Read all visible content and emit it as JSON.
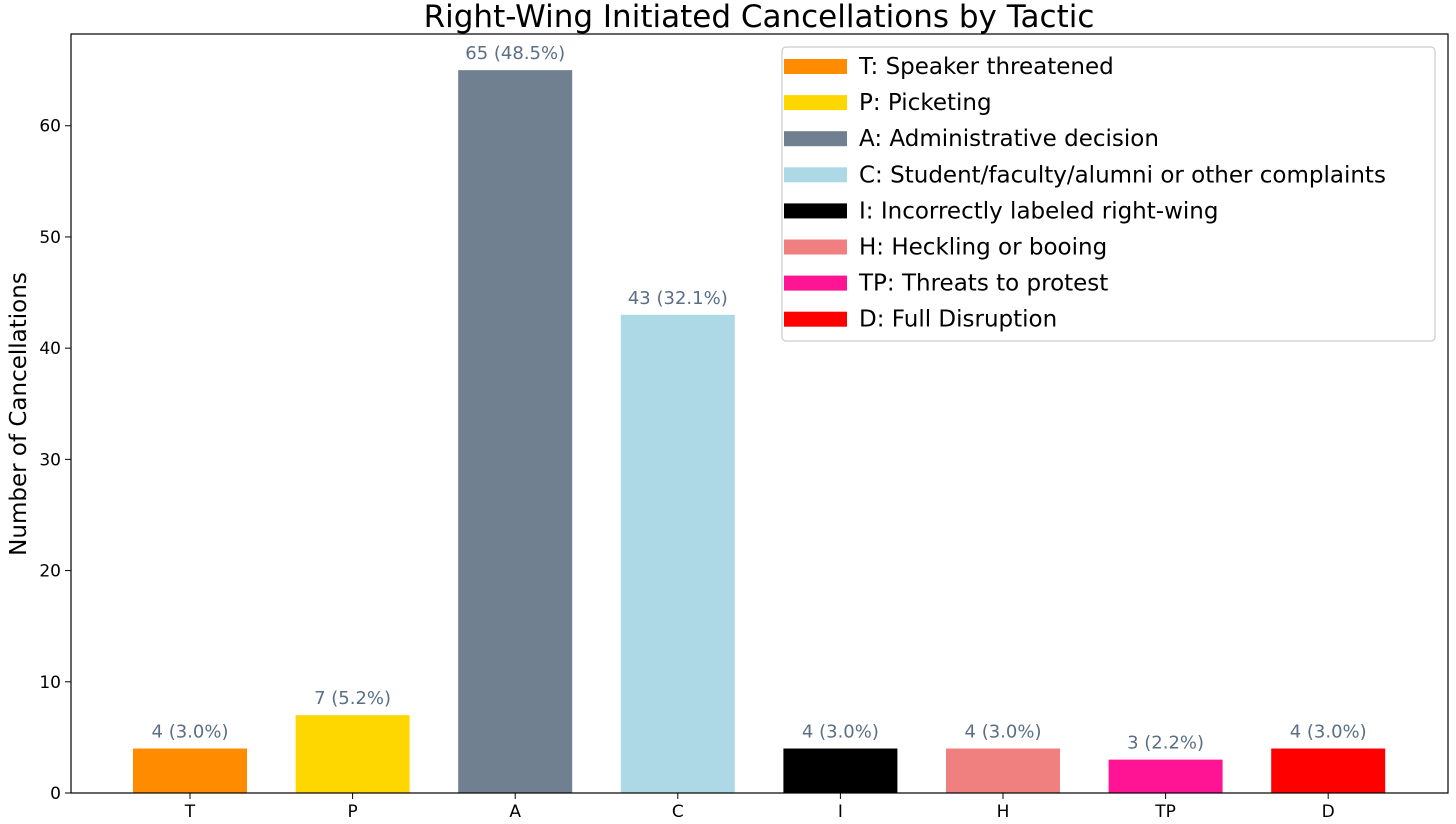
{
  "chart_data": {
    "type": "bar",
    "title": "Right-Wing Initiated Cancellations by Tactic",
    "xlabel": "",
    "ylabel": "Number of Cancellations",
    "ylim": [
      0,
      68.25
    ],
    "yticks": [
      0,
      10,
      20,
      30,
      40,
      50,
      60
    ],
    "grid": false,
    "legend_position": "top-right",
    "categories": [
      "T",
      "P",
      "A",
      "C",
      "I",
      "H",
      "TP",
      "D"
    ],
    "values": [
      4,
      7,
      65,
      43,
      4,
      4,
      3,
      4
    ],
    "bar_labels": [
      "4 (3.0%)",
      "7 (5.2%)",
      "65 (48.5%)",
      "43 (32.1%)",
      "4 (3.0%)",
      "4 (3.0%)",
      "3 (2.2%)",
      "4 (3.0%)"
    ],
    "colors": [
      "#ff8c00",
      "#ffd700",
      "#708090",
      "#add8e6",
      "#000000",
      "#f08080",
      "#ff1493",
      "#ff0000"
    ],
    "legend": [
      "T: Speaker threatened",
      "P: Picketing",
      "A: Administrative decision",
      "C: Student/faculty/alumni or other complaints",
      "I: Incorrectly labeled right-wing",
      "H: Heckling or booing",
      "TP: Threats to protest",
      "D: Full Disruption"
    ]
  }
}
